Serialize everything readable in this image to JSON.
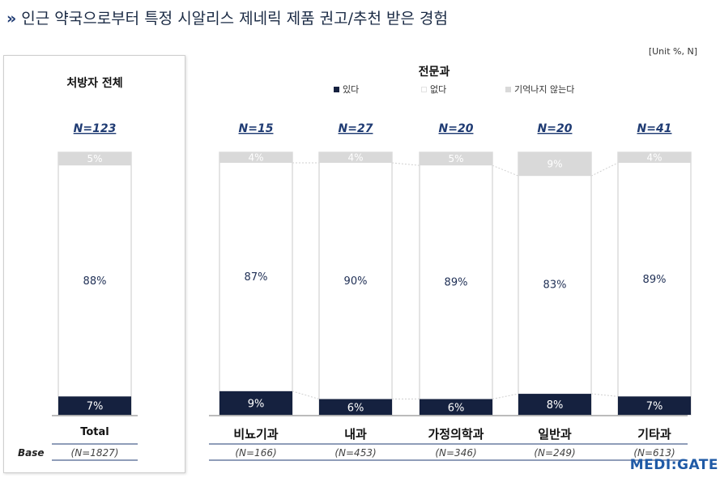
{
  "title": "인근 약국으로부터 특정 시알리스 제네릭 제품 권고/추천 받은 경험",
  "unit": "[Unit %, N]",
  "left_panel_title": "처방자 전체",
  "group_title": "전문과",
  "base_label": "Base",
  "logo": "MEDI:GATE",
  "colors": {
    "yes": "#15213f",
    "no": "#ffffff",
    "dontknow": "#d9d9d9",
    "accent": "#1f3b73"
  },
  "chart_data": {
    "type": "bar",
    "stacked": true,
    "percent": true,
    "ylim": [
      0,
      100
    ],
    "legend": [
      {
        "key": "yes",
        "label": "있다"
      },
      {
        "key": "no",
        "label": "없다"
      },
      {
        "key": "dontknow",
        "label": "기억나지 않는다"
      }
    ],
    "legend_position": "top",
    "categories": [
      "Total",
      "비뇨기과",
      "내과",
      "가정의학과",
      "일반과",
      "기타과"
    ],
    "n_top": [
      "N=123",
      "N=15",
      "N=27",
      "N=20",
      "N=20",
      "N=41"
    ],
    "base": [
      "(N=1827)",
      "(N=166)",
      "(N=453)",
      "(N=346)",
      "(N=249)",
      "(N=613)"
    ],
    "series": [
      {
        "name": "있다",
        "values": [
          7,
          9,
          6,
          6,
          8,
          7
        ]
      },
      {
        "name": "없다",
        "values": [
          88,
          87,
          90,
          89,
          83,
          89
        ]
      },
      {
        "name": "기억나지 않는다",
        "values": [
          5,
          4,
          4,
          5,
          9,
          4
        ]
      }
    ],
    "value_labels": {
      "yes": [
        "7%",
        "9%",
        "6%",
        "6%",
        "8%",
        "7%"
      ],
      "no": [
        "88%",
        "87%",
        "90%",
        "89%",
        "83%",
        "89%"
      ],
      "dontknow": [
        "5%",
        "4%",
        "4%",
        "5%",
        "9%",
        "4%"
      ]
    }
  }
}
